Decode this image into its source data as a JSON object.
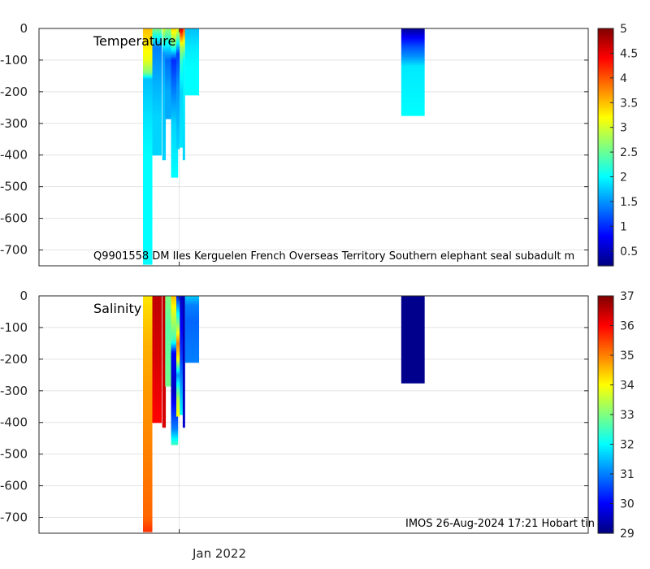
{
  "chart_data": [
    {
      "type": "heatmap",
      "title": "Temperature",
      "caption": "Q9901558 DM Iles Kerguelen French Overseas Territory Southern elephant seal subadult m",
      "ylim": [
        -750,
        0
      ],
      "yticks": [
        0,
        -100,
        -200,
        -300,
        -400,
        -500,
        -600,
        -700
      ],
      "ytick_labels": [
        "0",
        "-100",
        "-200",
        "-300",
        "-400",
        "-500",
        "-600",
        "-700"
      ],
      "xtick_labels": [
        ""
      ],
      "colorbar": {
        "range": [
          0.2,
          5
        ],
        "ticks": [
          0.5,
          1,
          1.5,
          2,
          2.5,
          3,
          3.5,
          4,
          4.5,
          5
        ],
        "tick_labels": [
          "0.5",
          "1",
          "1.5",
          "2",
          "2.5",
          "3",
          "3.5",
          "4",
          "4.5",
          "5"
        ]
      },
      "profiles": [
        {
          "day": -13.5,
          "width": 4,
          "bottom": -745,
          "segments": [
            [
              0,
              3.5
            ],
            [
              -100,
              3.1
            ],
            [
              -140,
              2.6
            ],
            [
              -160,
              1.7
            ],
            [
              -300,
              1.9
            ],
            [
              -400,
              2.0
            ],
            [
              -745,
              2.0
            ]
          ]
        },
        {
          "day": -9.5,
          "width": 4,
          "bottom": -400,
          "segments": [
            [
              0,
              2.6
            ],
            [
              -60,
              1.4
            ],
            [
              -150,
              1.6
            ],
            [
              -280,
              1.8
            ],
            [
              -400,
              1.8
            ]
          ]
        },
        {
          "day": -6.5,
          "width": 1.5,
          "bottom": -415,
          "segments": [
            [
              0,
              3.0
            ],
            [
              -80,
              1.5
            ],
            [
              -200,
              1.7
            ],
            [
              -415,
              1.8
            ]
          ]
        },
        {
          "day": -4.5,
          "width": 3,
          "bottom": -285,
          "segments": [
            [
              0,
              2.7
            ],
            [
              -100,
              1.3
            ],
            [
              -200,
              1.6
            ],
            [
              -285,
              1.6
            ]
          ]
        },
        {
          "day": -2.0,
          "width": 3,
          "bottom": -470,
          "segments": [
            [
              0,
              3.4
            ],
            [
              -50,
              2.5
            ],
            [
              -100,
              1.0
            ],
            [
              -200,
              1.4
            ],
            [
              -300,
              1.8
            ],
            [
              -470,
              2.0
            ]
          ]
        },
        {
          "day": -0.5,
          "width": 1.5,
          "bottom": -380,
          "segments": [
            [
              0,
              3.2
            ],
            [
              -80,
              1.1
            ],
            [
              -180,
              1.5
            ],
            [
              -380,
              1.8
            ]
          ]
        },
        {
          "day": 1.0,
          "width": 1.5,
          "bottom": -375,
          "segments": [
            [
              0,
              4.6
            ],
            [
              -60,
              2.8
            ],
            [
              -110,
              2.2
            ],
            [
              -200,
              1.8
            ],
            [
              -375,
              1.9
            ]
          ]
        },
        {
          "day": 2.0,
          "width": 1,
          "bottom": -415,
          "segments": [
            [
              0,
              4.0
            ],
            [
              -100,
              2.0
            ],
            [
              -415,
              1.8
            ]
          ]
        },
        {
          "day": 5.5,
          "width": 6,
          "bottom": -210,
          "segments": [
            [
              0,
              1.7
            ],
            [
              -60,
              1.9
            ],
            [
              -120,
              2.0
            ],
            [
              -210,
              2.0
            ]
          ]
        },
        {
          "day": 100,
          "width": 10,
          "bottom": -275,
          "segments": [
            [
              0,
              0.3
            ],
            [
              -30,
              0.8
            ],
            [
              -60,
              1.2
            ],
            [
              -90,
              1.5
            ],
            [
              -120,
              1.9
            ],
            [
              -275,
              2.0
            ]
          ]
        }
      ]
    },
    {
      "type": "heatmap",
      "title": "Salinity",
      "caption": "IMOS 26-Aug-2024 17:21 Hobart tin",
      "ylim": [
        -750,
        0
      ],
      "yticks": [
        0,
        -100,
        -200,
        -300,
        -400,
        -500,
        -600,
        -700
      ],
      "ytick_labels": [
        "0",
        "-100",
        "-200",
        "-300",
        "-400",
        "-500",
        "-600",
        "-700"
      ],
      "xtick_labels": [
        "Jan 2022"
      ],
      "colorbar": {
        "range": [
          29,
          37
        ],
        "ticks": [
          29,
          30,
          31,
          32,
          33,
          34,
          35,
          36,
          37
        ],
        "tick_labels": [
          "29",
          "30",
          "31",
          "32",
          "33",
          "34",
          "35",
          "36",
          "37"
        ]
      },
      "profiles": [
        {
          "day": -13.5,
          "width": 4,
          "bottom": -745,
          "segments": [
            [
              0,
              34.2
            ],
            [
              -150,
              34.6
            ],
            [
              -300,
              34.8
            ],
            [
              -500,
              35.0
            ],
            [
              -700,
              35.2
            ],
            [
              -745,
              35.6
            ]
          ]
        },
        {
          "day": -9.5,
          "width": 4,
          "bottom": -400,
          "segments": [
            [
              0,
              36.5
            ],
            [
              -200,
              36.3
            ],
            [
              -400,
              36.0
            ]
          ]
        },
        {
          "day": -6.5,
          "width": 1.5,
          "bottom": -415,
          "segments": [
            [
              0,
              36.5
            ],
            [
              -415,
              36.3
            ]
          ]
        },
        {
          "day": -4.5,
          "width": 3,
          "bottom": -285,
          "segments": [
            [
              0,
              33.0
            ],
            [
              -100,
              32.7
            ],
            [
              -285,
              32.9
            ]
          ]
        },
        {
          "day": -2.0,
          "width": 3,
          "bottom": -470,
          "segments": [
            [
              0,
              34.5
            ],
            [
              -140,
              32.5
            ],
            [
              -180,
              30.0
            ],
            [
              -300,
              29.5
            ],
            [
              -420,
              31.0
            ],
            [
              -470,
              32.5
            ]
          ]
        },
        {
          "day": -0.5,
          "width": 1.5,
          "bottom": -380,
          "segments": [
            [
              0,
              30.2
            ],
            [
              -150,
              35.0
            ],
            [
              -200,
              34.0
            ],
            [
              -250,
              31.2
            ],
            [
              -330,
              33.5
            ],
            [
              -380,
              34.0
            ]
          ]
        },
        {
          "day": 1.0,
          "width": 1.5,
          "bottom": -375,
          "segments": [
            [
              0,
              29.5
            ],
            [
              -200,
              30.5
            ],
            [
              -375,
              32.0
            ]
          ]
        },
        {
          "day": 2.0,
          "width": 1,
          "bottom": -415,
          "segments": [
            [
              0,
              29.4
            ],
            [
              -415,
              29.6
            ]
          ]
        },
        {
          "day": 5.5,
          "width": 6,
          "bottom": -210,
          "segments": [
            [
              0,
              31.6
            ],
            [
              -30,
              31.0
            ],
            [
              -80,
              30.8
            ],
            [
              -210,
              31.0
            ]
          ]
        },
        {
          "day": 100,
          "width": 10,
          "bottom": -275,
          "segments": [
            [
              0,
              29.1
            ],
            [
              -275,
              29.1
            ]
          ]
        }
      ]
    }
  ]
}
